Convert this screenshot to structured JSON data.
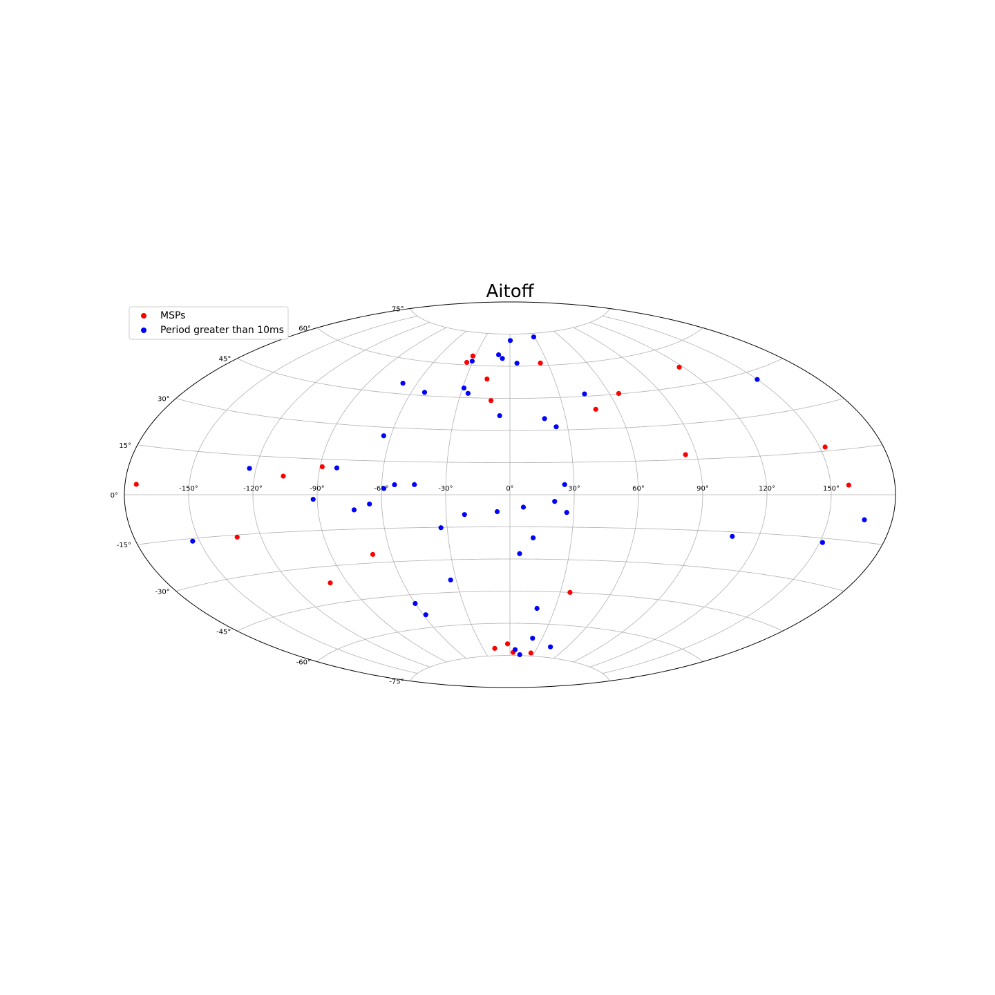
{
  "chart_data": {
    "type": "scatter",
    "projection": "aitoff",
    "title": "Aitoff",
    "grid": true,
    "legend_position": "top-left",
    "x_ticks": [
      "-150°",
      "-120°",
      "-90°",
      "-60°",
      "-30°",
      "0°",
      "30°",
      "60°",
      "90°",
      "120°",
      "150°"
    ],
    "y_ticks": [
      "75°",
      "60°",
      "45°",
      "30°",
      "15°",
      "0°",
      "-15°",
      "-30°",
      "-45°",
      "-60°",
      "-75°"
    ],
    "series": [
      {
        "name": "MSPs",
        "color": "#ff0000",
        "points": [
          [
            -174.7,
            3.2
          ],
          [
            -106.5,
            7.5
          ],
          [
            -89.0,
            11.8
          ],
          [
            -131.4,
            -15.8
          ],
          [
            -69.2,
            -26.3
          ],
          [
            -99.3,
            -36.8
          ],
          [
            -34.5,
            61.2
          ],
          [
            -32.2,
            64.3
          ],
          [
            -15.6,
            53.9
          ],
          [
            -11.1,
            43.9
          ],
          [
            24.3,
            61.2
          ],
          [
            65.5,
            45.2
          ],
          [
            47.8,
            38.9
          ],
          [
            84.7,
            17.1
          ],
          [
            117.6,
            52.2
          ],
          [
            152.6,
            16.4
          ],
          [
            158.4,
            3.2
          ],
          [
            35.8,
            -45.0
          ],
          [
            -17.1,
            -71.6
          ],
          [
            -2.5,
            -69.6
          ],
          [
            3.9,
            -73.6
          ],
          [
            26.0,
            -73.6
          ]
        ]
      },
      {
        "name": "Period greater than 10ms",
        "color": "#0000ff",
        "points": [
          [
            0.4,
            72.0
          ],
          [
            29.1,
            73.3
          ],
          [
            -10.1,
            65.3
          ],
          [
            -6.4,
            63.6
          ],
          [
            5.6,
            61.4
          ],
          [
            -30.7,
            61.9
          ],
          [
            -68.9,
            49.7
          ],
          [
            -52.1,
            46.5
          ],
          [
            -29.1,
            49.4
          ],
          [
            -25.6,
            47.0
          ],
          [
            -5.6,
            36.9
          ],
          [
            18.6,
            35.4
          ],
          [
            24.1,
            31.5
          ],
          [
            45.2,
            46.1
          ],
          [
            150.0,
            42.0
          ],
          [
            -63.6,
            26.2
          ],
          [
            -123.1,
            10.1
          ],
          [
            -82.0,
            11.5
          ],
          [
            -58.9,
            2.8
          ],
          [
            -54.0,
            4.5
          ],
          [
            -44.7,
            4.6
          ],
          [
            25.6,
            4.7
          ],
          [
            167.0,
            -8.0
          ],
          [
            -91.9,
            -1.9
          ],
          [
            -73.1,
            -6.6
          ],
          [
            -65.7,
            -4.1
          ],
          [
            -21.4,
            -9.2
          ],
          [
            -6.0,
            -7.9
          ],
          [
            6.3,
            -5.8
          ],
          [
            20.9,
            -3.1
          ],
          [
            26.7,
            -8.2
          ],
          [
            107.3,
            -16.8
          ],
          [
            151.4,
            -16.5
          ],
          [
            -153.3,
            -15.9
          ],
          [
            -33.0,
            -15.2
          ],
          [
            11.3,
            -20.1
          ],
          [
            4.9,
            -27.5
          ],
          [
            -33.1,
            -39.3
          ],
          [
            -60.1,
            -49.0
          ],
          [
            -58.4,
            -54.3
          ],
          [
            18.1,
            -52.9
          ],
          [
            43.4,
            -70.2
          ],
          [
            21.2,
            -66.8
          ],
          [
            6.0,
            -72.3
          ],
          [
            12.8,
            -74.6
          ]
        ]
      }
    ]
  }
}
